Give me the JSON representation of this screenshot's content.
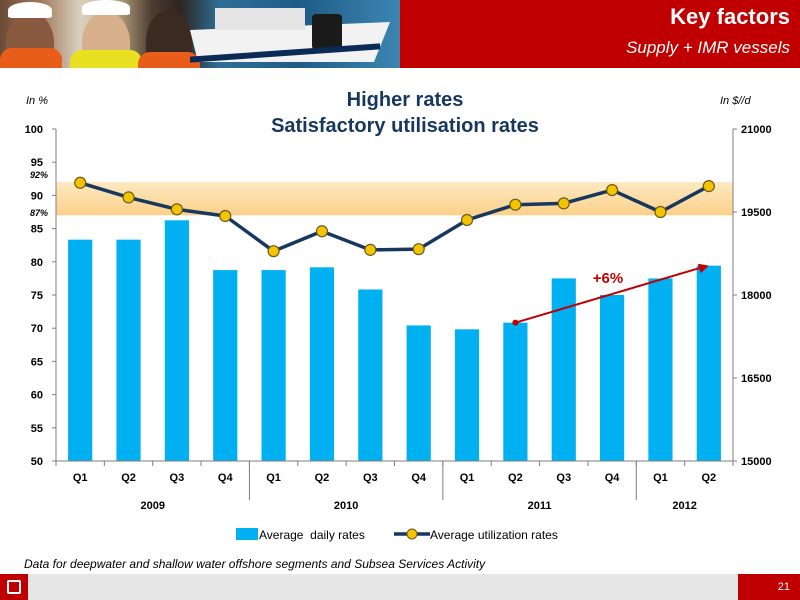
{
  "header": {
    "title": "Key factors",
    "subtitle": "Supply + IMR vessels"
  },
  "footer": {
    "page_number": "21"
  },
  "footnote": "Data for deepwater and shallow water offshore segments and Subsea Services Activity",
  "colors": {
    "brand_red": "#c00000",
    "bar_blue": "#00b0f0",
    "line_navy": "#17375e",
    "marker_yellow": "#f5c400",
    "band_orange": "#fbd08a",
    "arrow_red": "#c00000"
  },
  "chart_data": {
    "type": "bar+line",
    "title": "Higher rates",
    "subtitle": "Satisfactory utilisation rates",
    "ylabel_left": "In %",
    "ylabel_right": "In $//d",
    "categories": [
      "Q1",
      "Q2",
      "Q3",
      "Q4",
      "Q1",
      "Q2",
      "Q3",
      "Q4",
      "Q1",
      "Q2",
      "Q3",
      "Q4",
      "Q1",
      "Q2"
    ],
    "groups": [
      {
        "label": "2009",
        "start": 0,
        "end": 3
      },
      {
        "label": "2010",
        "start": 4,
        "end": 7
      },
      {
        "label": "2011",
        "start": 8,
        "end": 11
      },
      {
        "label": "2012",
        "start": 12,
        "end": 13
      }
    ],
    "left_axis": {
      "min": 50,
      "max": 100,
      "ticks": [
        50,
        55,
        60,
        65,
        70,
        75,
        80,
        85,
        90,
        95,
        100
      ]
    },
    "right_axis": {
      "min": 15000,
      "max": 21000,
      "ticks": [
        15000,
        16500,
        18000,
        19500,
        21000
      ]
    },
    "series": [
      {
        "name": "Average  daily rates",
        "kind": "bar",
        "axis": "right",
        "values": [
          19000,
          19000,
          19350,
          18450,
          18450,
          18500,
          18100,
          17450,
          17380,
          17500,
          18300,
          18000,
          18300,
          18530
        ]
      },
      {
        "name": "Average utilization rates",
        "kind": "line",
        "axis": "left",
        "values": [
          91.9,
          89.7,
          87.9,
          86.9,
          81.6,
          84.6,
          81.8,
          81.9,
          86.3,
          88.6,
          88.8,
          90.8,
          87.5,
          91.4
        ]
      }
    ],
    "band": {
      "from": 87,
      "to": 92,
      "labels": [
        "92%",
        "87%"
      ]
    },
    "annotation": {
      "text": "+6%",
      "from_index": 9,
      "to_index": 13,
      "from_value": 17500,
      "to_value": 18530
    },
    "grid": false,
    "legend_position": "bottom"
  }
}
